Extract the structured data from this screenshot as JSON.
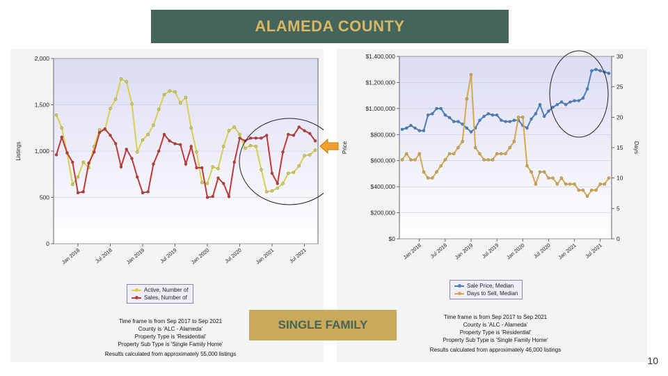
{
  "title": "ALAMEDA COUNTY",
  "subtitle": "SINGLE FAMILY",
  "page_number": "10",
  "colors": {
    "banner_bg": "#45655a",
    "banner_text": "#d8b866",
    "badge_bg": "#c9a95b",
    "badge_text": "#45655a",
    "arrow": "#f0a030"
  },
  "left_panel": {
    "legend": [
      "Active, Number of",
      "Sales, Number of"
    ],
    "notes": [
      "Time frame is from Sep 2017 to Sep 2021",
      "County is 'ALC - Alameda'",
      "Property Type is 'Residential'",
      "Property Sub Type is 'Single Family Home'"
    ],
    "notes_last": "Results calculated from approximately 55,000 listings"
  },
  "right_panel": {
    "legend": [
      "Sale Price, Median",
      "Days to Sell, Median"
    ],
    "notes": [
      "Time frame is from Sep 2017 to Sep 2021",
      "County is 'ALC - Alameda'",
      "Property Type is 'Residential'",
      "Property Sub Type is 'Single Family Home'"
    ],
    "notes_last": "Results calculated from approximately 46,000 listings"
  },
  "chart_data": [
    {
      "type": "line",
      "x": [
        "Sep 2017",
        "Oct 2017",
        "Nov 2017",
        "Dec 2017",
        "Jan 2018",
        "Feb 2018",
        "Mar 2018",
        "Apr 2018",
        "May 2018",
        "Jun 2018",
        "Jul 2018",
        "Aug 2018",
        "Sep 2018",
        "Oct 2018",
        "Nov 2018",
        "Dec 2018",
        "Jan 2019",
        "Feb 2019",
        "Mar 2019",
        "Apr 2019",
        "May 2019",
        "Jun 2019",
        "Jul 2019",
        "Aug 2019",
        "Sep 2019",
        "Oct 2019",
        "Nov 2019",
        "Dec 2019",
        "Jan 2020",
        "Feb 2020",
        "Mar 2020",
        "Apr 2020",
        "May 2020",
        "Jun 2020",
        "Jul 2020",
        "Aug 2020",
        "Sep 2020",
        "Oct 2020",
        "Nov 2020",
        "Dec 2020",
        "Jan 2021",
        "Feb 2021",
        "Mar 2021",
        "Apr 2021",
        "May 2021",
        "Jun 2021",
        "Jul 2021",
        "Aug 2021",
        "Sep 2021"
      ],
      "x_tick_labels": [
        "Jan 2018",
        "Jul 2018",
        "Jan 2019",
        "Jul 2019",
        "Jan 2020",
        "Jul 2020",
        "Jan 2021",
        "Jul 2021"
      ],
      "x_tick_index": [
        4,
        10,
        16,
        22,
        28,
        34,
        40,
        46
      ],
      "ylabel": "Listings",
      "ylim": [
        0,
        2000
      ],
      "yticks": [
        "0",
        "500",
        "1,000",
        "1,500",
        "2,000"
      ],
      "ytick_values": [
        0,
        500,
        1000,
        1500,
        2000
      ],
      "grid": "horizontal",
      "series": [
        {
          "name": "Active, Number of",
          "color": "#d6d050",
          "values": [
            1390,
            1250,
            980,
            640,
            720,
            880,
            820,
            1050,
            1230,
            1230,
            1460,
            1560,
            1780,
            1750,
            1510,
            990,
            1120,
            1180,
            1280,
            1450,
            1610,
            1650,
            1640,
            1520,
            1580,
            1250,
            990,
            660,
            650,
            830,
            810,
            1050,
            1220,
            1260,
            1180,
            1030,
            1060,
            1050,
            800,
            560,
            570,
            600,
            650,
            760,
            770,
            840,
            950,
            960,
            1010
          ]
        },
        {
          "name": "Sales, Number of",
          "color": "#c03838",
          "values": [
            960,
            1150,
            980,
            880,
            550,
            560,
            870,
            990,
            1200,
            1240,
            1170,
            1080,
            830,
            1020,
            920,
            720,
            550,
            560,
            860,
            1000,
            1180,
            1110,
            1080,
            1070,
            860,
            1050,
            820,
            820,
            500,
            510,
            710,
            650,
            510,
            880,
            1140,
            1110,
            1140,
            1140,
            1140,
            1170,
            760,
            650,
            990,
            1180,
            1170,
            1260,
            1220,
            1190,
            1110
          ]
        }
      ]
    },
    {
      "type": "line",
      "x": [
        "Sep 2017",
        "Oct 2017",
        "Nov 2017",
        "Dec 2017",
        "Jan 2018",
        "Feb 2018",
        "Mar 2018",
        "Apr 2018",
        "May 2018",
        "Jun 2018",
        "Jul 2018",
        "Aug 2018",
        "Sep 2018",
        "Oct 2018",
        "Nov 2018",
        "Dec 2018",
        "Jan 2019",
        "Feb 2019",
        "Mar 2019",
        "Apr 2019",
        "May 2019",
        "Jun 2019",
        "Jul 2019",
        "Aug 2019",
        "Sep 2019",
        "Oct 2019",
        "Nov 2019",
        "Dec 2019",
        "Jan 2020",
        "Feb 2020",
        "Mar 2020",
        "Apr 2020",
        "May 2020",
        "Jun 2020",
        "Jul 2020",
        "Aug 2020",
        "Sep 2020",
        "Oct 2020",
        "Nov 2020",
        "Dec 2020",
        "Jan 2021",
        "Feb 2021",
        "Mar 2021",
        "Apr 2021",
        "May 2021",
        "Jun 2021",
        "Jul 2021",
        "Aug 2021",
        "Sep 2021"
      ],
      "x_tick_labels": [
        "Jan 2018",
        "Jul 2018",
        "Jan 2019",
        "Jul 2019",
        "Jan 2020",
        "Jul 2020",
        "Jan 2021",
        "Jul 2021"
      ],
      "x_tick_index": [
        4,
        10,
        16,
        22,
        28,
        34,
        40,
        46
      ],
      "ylabel": "Price",
      "y2label": "Days",
      "ylim": [
        0,
        1400000
      ],
      "y2lim": [
        0,
        30
      ],
      "yticks": [
        "$0",
        "$200,000",
        "$400,000",
        "$600,000",
        "$800,000",
        "$1,000,000",
        "$1,200,000",
        "$1,400,000"
      ],
      "ytick_values": [
        0,
        200000,
        400000,
        600000,
        800000,
        1000000,
        1200000,
        1400000
      ],
      "y2ticks": [
        "0",
        "5",
        "10",
        "15",
        "20",
        "25",
        "30"
      ],
      "y2tick_values": [
        0,
        5,
        10,
        15,
        20,
        25,
        30
      ],
      "grid": "horizontal",
      "series": [
        {
          "name": "Sale Price, Median",
          "axis": "left",
          "color": "#4a7fc0",
          "values": [
            840000,
            850000,
            870000,
            850000,
            830000,
            830000,
            950000,
            960000,
            1000000,
            1000000,
            950000,
            930000,
            900000,
            900000,
            880000,
            850000,
            820000,
            850000,
            910000,
            940000,
            960000,
            950000,
            950000,
            910000,
            900000,
            900000,
            910000,
            910000,
            870000,
            850000,
            920000,
            960000,
            1030000,
            940000,
            980000,
            1010000,
            1030000,
            1050000,
            1030000,
            1050000,
            1060000,
            1060000,
            1080000,
            1150000,
            1290000,
            1300000,
            1290000,
            1280000,
            1270000
          ]
        },
        {
          "name": "Days to Sell, Median",
          "axis": "right",
          "color": "#d4a94e",
          "values": [
            13,
            14,
            13,
            13,
            14,
            11,
            10,
            10,
            11,
            12,
            13,
            14,
            14,
            15,
            16,
            23,
            27,
            15,
            14,
            13,
            13,
            13,
            14,
            14,
            14,
            15,
            16,
            20,
            20,
            12,
            11,
            9,
            11,
            11,
            10,
            10,
            9,
            10,
            9,
            9,
            9,
            8,
            8,
            7,
            8,
            8,
            9,
            9,
            10
          ]
        }
      ]
    }
  ]
}
